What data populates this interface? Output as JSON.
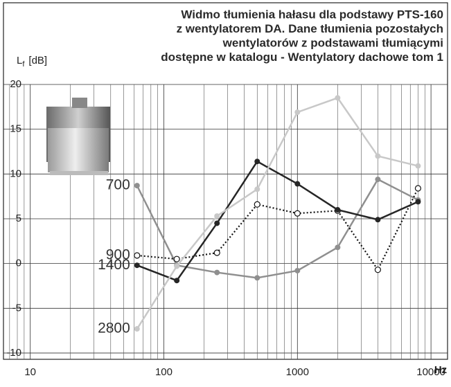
{
  "chart_data": {
    "type": "line",
    "title": [
      "Widmo tłumienia hałasu dla podstawy  PTS-160",
      "z wentylatorem DA.  Dane tłumienia pozostałych",
      "wentylatorów z podstawami tłumiącymi",
      "dostępne w katalogu - Wentylatory dachowe tom 1"
    ],
    "ylabel": {
      "main": "L",
      "sub": "f",
      "unit": "[dB]"
    },
    "xlabel": "Hz",
    "x": [
      63,
      125,
      250,
      500,
      1000,
      2000,
      4000,
      8000
    ],
    "xlim": [
      6.3,
      13300
    ],
    "xticks": [
      10,
      100,
      1000,
      10000
    ],
    "xscale": "log",
    "ylim": [
      -10.7,
      20
    ],
    "yticks": [
      20,
      15,
      10,
      5,
      0,
      -5,
      -10
    ],
    "grid": true,
    "minor_grid": true,
    "series": [
      {
        "name": "700",
        "color": "#8f8f8f",
        "style": "solid",
        "marker": "filled",
        "values": [
          8.7,
          -0.2,
          -1.0,
          -1.6,
          -0.8,
          1.8,
          9.4,
          7.1
        ]
      },
      {
        "name": "900",
        "color": "#111111",
        "style": "dotted",
        "marker": "open",
        "values": [
          0.9,
          0.5,
          1.2,
          6.6,
          5.6,
          5.9,
          -0.7,
          8.4
        ]
      },
      {
        "name": "1400",
        "color": "#262626",
        "style": "solid",
        "marker": "filled",
        "values": [
          -0.2,
          -1.9,
          4.5,
          11.4,
          8.9,
          6.0,
          4.9,
          6.9
        ]
      },
      {
        "name": "2800",
        "color": "#c8c8c8",
        "style": "solid",
        "marker": "filled",
        "values": [
          -7.3,
          -0.3,
          5.3,
          8.3,
          16.9,
          18.5,
          12.0,
          10.9
        ]
      }
    ]
  }
}
